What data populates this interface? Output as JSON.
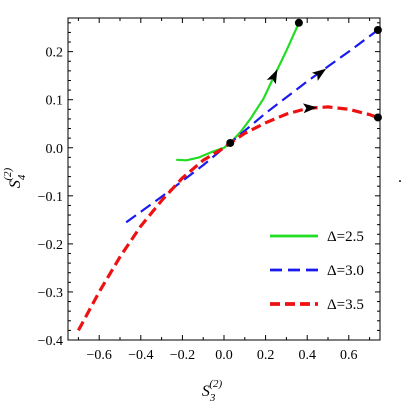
{
  "chart_data": {
    "type": "line",
    "title": "",
    "xlabel": "S",
    "xlabel_sub": "3",
    "xlabel_sup": "(2)",
    "ylabel": "S",
    "ylabel_sub": "4",
    "ylabel_sup": "(2)",
    "xlim": [
      -0.75,
      0.75
    ],
    "ylim": [
      -0.4,
      0.27
    ],
    "x_ticks": [
      -0.6,
      -0.4,
      -0.2,
      0.0,
      0.2,
      0.4,
      0.6
    ],
    "x_tick_labels": [
      "−0.6",
      "−0.4",
      "−0.2",
      "0.0",
      "0.2",
      "0.4",
      "0.6"
    ],
    "y_ticks": [
      -0.4,
      -0.3,
      -0.2,
      -0.1,
      0.0,
      0.1,
      0.2
    ],
    "y_tick_labels": [
      "−0.4",
      "−0.3",
      "−0.2",
      "−0.1",
      "0.0",
      "0.1",
      "0.2"
    ],
    "grid": false,
    "legend_position": "bottom-right",
    "series": [
      {
        "name": "Δ=2.5",
        "color": "#22dd22",
        "style": "solid",
        "x": [
          -0.23,
          -0.18,
          -0.12,
          -0.06,
          0.0,
          0.03,
          0.08,
          0.13,
          0.19,
          0.24,
          0.3,
          0.36
        ],
        "y": [
          -0.025,
          -0.026,
          -0.02,
          -0.009,
          0.0,
          0.01,
          0.033,
          0.062,
          0.102,
          0.148,
          0.202,
          0.26
        ]
      },
      {
        "name": "Δ=3.0",
        "color": "#1a1aee",
        "style": "dashed",
        "x": [
          -0.47,
          -0.3,
          -0.1,
          0.0,
          0.03,
          0.2,
          0.4,
          0.6,
          0.74
        ],
        "y": [
          -0.155,
          -0.102,
          -0.036,
          0.0,
          0.01,
          0.072,
          0.138,
          0.2,
          0.245
        ]
      },
      {
        "name": "Δ=3.5",
        "color": "#ee1111",
        "style": "dashed",
        "x": [
          -0.7,
          -0.6,
          -0.5,
          -0.4,
          -0.3,
          -0.2,
          -0.1,
          0.0,
          0.03,
          0.1,
          0.2,
          0.3,
          0.4,
          0.5,
          0.6,
          0.7,
          0.74
        ],
        "y": [
          -0.38,
          -0.3,
          -0.227,
          -0.163,
          -0.11,
          -0.063,
          -0.026,
          0.0,
          0.01,
          0.03,
          0.052,
          0.07,
          0.082,
          0.085,
          0.08,
          0.069,
          0.063
        ]
      }
    ],
    "points": [
      {
        "x": 0.03,
        "y": 0.01
      },
      {
        "x": 0.36,
        "y": 0.26
      },
      {
        "x": 0.74,
        "y": 0.245
      },
      {
        "x": 0.74,
        "y": 0.063
      }
    ],
    "arrows": [
      {
        "series": 0,
        "x": 0.24,
        "y": 0.148
      },
      {
        "series": 1,
        "x": 0.46,
        "y": 0.155
      },
      {
        "series": 2,
        "x": 0.41,
        "y": 0.083
      }
    ],
    "extra_text": "."
  }
}
